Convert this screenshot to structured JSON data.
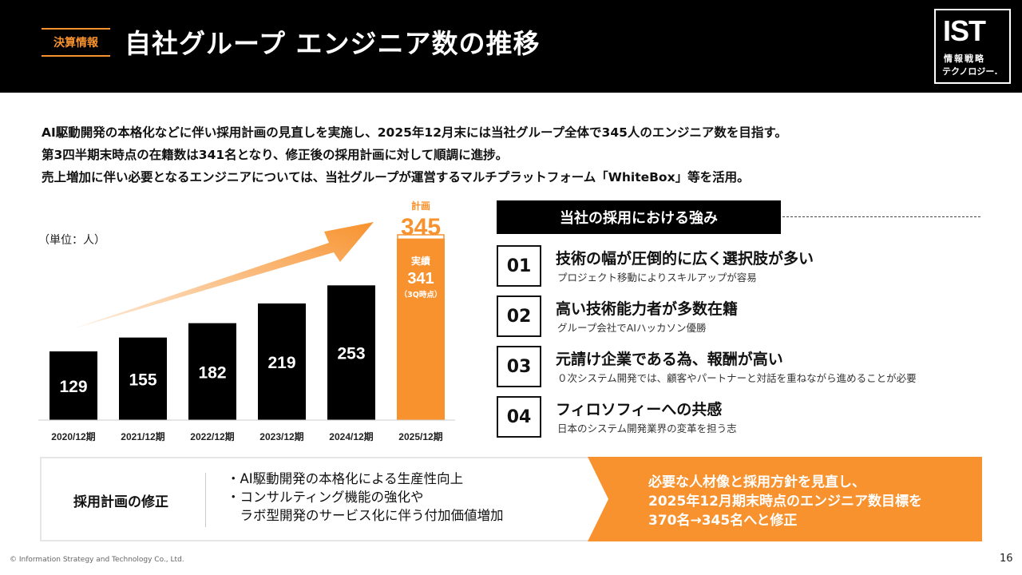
{
  "header": {
    "tag": "決算情報",
    "title": "自社グループ エンジニア数の推移",
    "logo": {
      "big": "IST",
      "line1": "情報戦略",
      "line2": "テクノロジー."
    }
  },
  "intro": [
    "AI駆動開発の本格化などに伴い採用計画の見直しを実施し、2025年12月末には当社グループ全体で345人のエンジニア数を目指す。",
    "第3四半期末時点の在籍数は341名となり、修正後の採用計画に対して順調に進捗。",
    "売上増加に伴い必要となるエンジニアについては、当社グループが運営するマルチプラットフォーム「WhiteBox」等を活用。"
  ],
  "chart_unit": "（単位：人）",
  "chart_data": {
    "type": "bar",
    "categories": [
      "2020/12期",
      "2021/12期",
      "2022/12期",
      "2023/12期",
      "2024/12期",
      "2025/12期"
    ],
    "series": [
      {
        "values": [
          129,
          155,
          182,
          219,
          253,
          341
        ]
      }
    ],
    "plan": {
      "label": "計画",
      "value": 345
    },
    "actual": {
      "label": "実績",
      "value": 341,
      "note": "（3Q時点）"
    },
    "ylim": [
      0,
      345
    ],
    "colors": {
      "bar": "#000000",
      "highlight": "#f7922e"
    }
  },
  "strengths": {
    "heading": "当社の採用における強み",
    "items": [
      {
        "num": "01",
        "title": "技術の幅が圧倒的に広く選択肢が多い",
        "desc": "プロジェクト移動によりスキルアップが容易"
      },
      {
        "num": "02",
        "title": "高い技術能力者が多数在籍",
        "desc": "グループ会社でAIハッカソン優勝"
      },
      {
        "num": "03",
        "title": "元請け企業である為、報酬が高い",
        "desc": "０次システム開発では、顧客やパートナーと対話を重ねながら進めることが必要"
      },
      {
        "num": "04",
        "title": "フィロソフィーへの共感",
        "desc": "日本のシステム開発業界の変革を担う志"
      }
    ]
  },
  "revision": {
    "label": "採用計画の修正",
    "points": [
      "・AI駆動開発の本格化による生産性向上",
      "・コンサルティング機能の強化や",
      "　ラボ型開発のサービス化に伴う付加価値増加"
    ],
    "result": [
      "必要な人材像と採用方針を見直し、",
      "2025年12月期末時点のエンジニア数目標を",
      "370名→345名へと修正"
    ]
  },
  "footer": {
    "copyright": "© Information Strategy and Technology Co., Ltd.",
    "page": "16"
  },
  "colors": {
    "accent": "#f7922e",
    "header_bg": "#000000"
  }
}
